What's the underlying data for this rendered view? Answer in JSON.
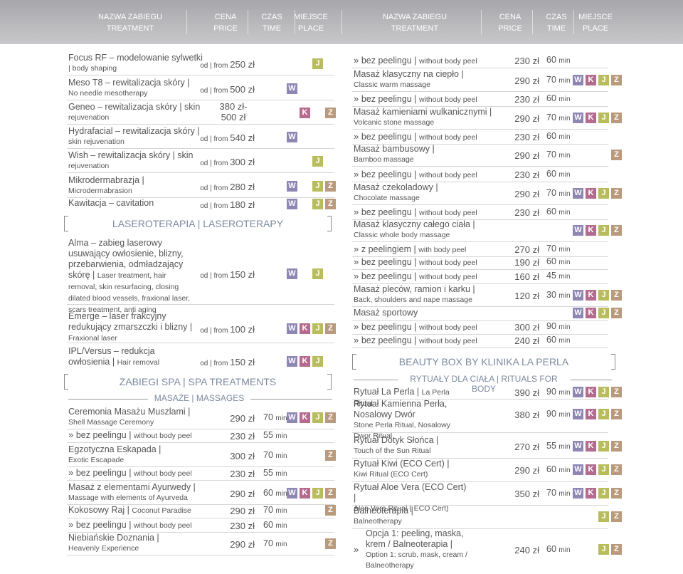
{
  "header": {
    "l": [
      [
        "NAZWA ZABIEGU",
        "TREATMENT"
      ],
      [
        "CENA",
        "PRICE"
      ],
      [
        "CZAS",
        "TIME"
      ],
      [
        "MIEJSCE",
        "PLACE"
      ]
    ],
    "r": [
      [
        "NAZWA ZABIEGU",
        "TREATMENT"
      ],
      [
        "CENA",
        "PRICE"
      ],
      [
        "CZAS",
        "TIME"
      ],
      [
        "MIEJSCE",
        "PLACE"
      ]
    ]
  },
  "sections": {
    "laser": "LASEROTERAPIA | LASEROTERAPY",
    "spa": "ZABIEGI SPA | SPA TREATMENTS",
    "massage": "MASAŻE | MASSAGES",
    "beauty": "BEAUTY BOX BY KLINIKA LA PERLA",
    "rituals": "RYTUAŁY DLA CIAŁA | RITUALS FOR BODY"
  },
  "left_top": [
    {
      "n": "Focus RF – modelowanie sylwetki",
      "e": "| body shaping",
      "p": "od | from 250 zł",
      "t": "",
      "b": [
        "J"
      ]
    },
    {
      "n": "Meso T8 – rewitalizacja skóry |",
      "e": "No needle mesotherapy",
      "p": "od | from 500 zł",
      "t": "",
      "b": [
        "W"
      ]
    },
    {
      "n": "Geneo – rewitalizacja skóry | skin",
      "e": "rejuvenation",
      "p": "380 zł- 500 zł",
      "t": "",
      "b": [
        "K",
        "Z"
      ]
    },
    {
      "n": "Hydrafacial – rewitalizacja skóry |",
      "e": "skin rejuvenation",
      "p": "od | from 540 zł",
      "t": "",
      "b": [
        "W"
      ]
    },
    {
      "n": "Wish – rewitalizacja skóry | skin",
      "e": "rejuvenation",
      "p": "od | from 300 zł",
      "t": "",
      "b": [
        "J"
      ]
    },
    {
      "n": "Mikrodermabrazja |",
      "e": "Microdermabrasion",
      "p": "od | from 280 zł",
      "t": "",
      "b": [
        "W",
        "J",
        "Z"
      ]
    },
    {
      "n": "Kawitacja – cavitation",
      "e": "",
      "p": "od | from 180 zł",
      "t": "",
      "b": [
        "W",
        "J",
        "Z"
      ]
    }
  ],
  "laser_items": [
    {
      "n": "Alma – zabieg laserowy usuwający owłosienie, blizny, przebarwienia, odmładzający skórę |",
      "e": "Laser treatment, hair removal, skin resurfacing, closing dilated blood vessels, fraxional laser, scars treatment, anti aging",
      "p": "od | from 150 zł",
      "b": [
        "W",
        "J"
      ]
    },
    {
      "n": "Emerge – laser frakcyjny redukujący zmarszczki i blizny |",
      "e": "Fraxional laser",
      "p": "od | from 100 zł",
      "b": [
        "W",
        "K",
        "J",
        "Z"
      ]
    },
    {
      "n": "IPL/Versus – redukcja owłosienia |",
      "e": "Hair removal",
      "p": "od | from 150 zł",
      "b": [
        "W",
        "K",
        "J"
      ]
    }
  ],
  "massages": [
    {
      "n": "Ceremonia Masażu Muszlami |",
      "e": "Shell Massage Ceremony",
      "p": "290 zł",
      "t": "70",
      "b": [
        "W",
        "K",
        "J",
        "Z"
      ]
    },
    {
      "a": "bez peelingu",
      "e": "without body peel",
      "p": "230 zł",
      "t": "55"
    },
    {
      "n": "Egzotyczna Eskapada |",
      "e": "Exotic Escapade",
      "p": "300 zł",
      "t": "70",
      "b": [
        "Z"
      ]
    },
    {
      "a": "bez peelingu",
      "e": "without body peel",
      "p": "230 zł",
      "t": "55"
    },
    {
      "n": "Masaż z elementami Ayurwedy |",
      "e": "Massage with elements of Ayurveda",
      "p": "290 zł",
      "t": "60",
      "b": [
        "W",
        "K",
        "J",
        "Z"
      ]
    },
    {
      "n": "Kokosowy Raj",
      "e": "Coconut Paradise",
      "p": "290 zł",
      "t": "70",
      "b": [
        "Z"
      ],
      "inline": true
    },
    {
      "a": "bez peelingu",
      "e": "without body peel",
      "p": "230 zł",
      "t": "60"
    },
    {
      "n": "Niebiańskie Doznania |",
      "e": "Heavenly Experience",
      "p": "290 zł",
      "t": "70",
      "b": [
        "Z"
      ]
    }
  ],
  "unit": "min",
  "right": [
    {
      "a": "bez peelingu",
      "e": "without body peel",
      "p": "230 zł",
      "t": "60"
    },
    {
      "n": "Masaż klasyczny na ciepło |",
      "e": "Classic warm massage",
      "p": "290 zł",
      "t": "70",
      "b": [
        "W",
        "K",
        "J",
        "Z"
      ]
    },
    {
      "a": "bez peelingu",
      "e": "without body peel",
      "p": "230 zł",
      "t": "60"
    },
    {
      "n": "Masaż kamieniami wulkanicznymi |",
      "e": "Volcanic stone massage",
      "p": "290 zł",
      "t": "70",
      "b": [
        "W",
        "K",
        "J",
        "Z"
      ]
    },
    {
      "a": "bez peelingu",
      "e": "without body peel",
      "p": "230 zł",
      "t": "60"
    },
    {
      "n": "Masaż bambusowy |",
      "e": "Bamboo massage",
      "p": "290 zł",
      "t": "70",
      "b": [
        "Z"
      ]
    },
    {
      "a": "bez peelingu",
      "e": "without body peel",
      "p": "230 zł",
      "t": "60"
    },
    {
      "n": "Masaż czekoladowy |",
      "e": "Chocolate massage",
      "p": "290 zł",
      "t": "70",
      "b": [
        "W",
        "K",
        "J",
        "Z"
      ]
    },
    {
      "a": "bez peelingu",
      "e": "without body peel",
      "p": "230 zł",
      "t": "60"
    },
    {
      "n": "Masaż klasyczny całego ciała |",
      "e": "Classic whole body massage",
      "p": "",
      "t": "",
      "b": [
        "W",
        "K",
        "J",
        "Z"
      ]
    },
    {
      "a": "z peelingiem",
      "e": "with body peel",
      "p": "270 zł",
      "t": "70"
    },
    {
      "a": "bez peelingu",
      "e": "without body peel",
      "p": "190 zł",
      "t": "60"
    },
    {
      "a": "bez peelingu",
      "e": "without body peel",
      "p": "160 zł",
      "t": "45"
    },
    {
      "n": "Masaż pleców, ramion i karku |",
      "e": "Back, shoulders and nape massage",
      "p": "120 zł",
      "t": "30",
      "b": [
        "W",
        "K",
        "J",
        "Z"
      ]
    },
    {
      "n": "Masaż sportowy",
      "e": "",
      "p": "",
      "t": "",
      "b": [
        "W",
        "K",
        "J",
        "Z"
      ]
    },
    {
      "a": "bez peelingu",
      "e": "without body peel",
      "p": "300 zł",
      "t": "90"
    },
    {
      "a": "bez peelingu",
      "e": "without body peel",
      "p": "240 zł",
      "t": "60"
    }
  ],
  "rituals": [
    {
      "n": "Rytuał La Perla",
      "e": "La Perla Ritual",
      "p": "390 zł",
      "t": "90",
      "b": [
        "W",
        "K",
        "J",
        "Z"
      ],
      "inline": true
    },
    {
      "n": "Rytuał Kamienna Perła, Nosalowy Dwór",
      "e": "Stone Perla Ritual, Nosalowy Dwor Ritual",
      "p": "380 zł",
      "t": "90",
      "b": [
        "W",
        "K",
        "J",
        "Z"
      ]
    },
    {
      "n": "Rytuał Dotyk Słońca |",
      "e": "Touch of the Sun Ritual",
      "p": "270 zł",
      "t": "55",
      "b": [
        "W",
        "K",
        "J",
        "Z"
      ]
    },
    {
      "n": "Rytuał Kiwi (ECO Cert) |",
      "e": "Kiwi Ritual (ECO Cert)",
      "p": "290 zł",
      "t": "60",
      "b": [
        "W",
        "K",
        "J",
        "Z"
      ]
    },
    {
      "n": "Rytuał Aloe Vera (ECO Cert) |",
      "e": "Aloe Vera Ritual ( ECO Cert)",
      "p": "350 zł",
      "t": "70",
      "b": [
        "W",
        "K",
        "J",
        "Z"
      ]
    },
    {
      "n": "Balneoterapia |",
      "e": "Balneotherapy",
      "p": "",
      "t": "",
      "b": [
        "J",
        "Z"
      ]
    },
    {
      "a": "Opcja 1: peeling, maska, krem / Balneoterapia |",
      "e": "Option 1: scrub, mask, cream / Balneotherapy",
      "p": "240 zł",
      "t": "60",
      "b": [
        "J",
        "Z"
      ]
    }
  ]
}
